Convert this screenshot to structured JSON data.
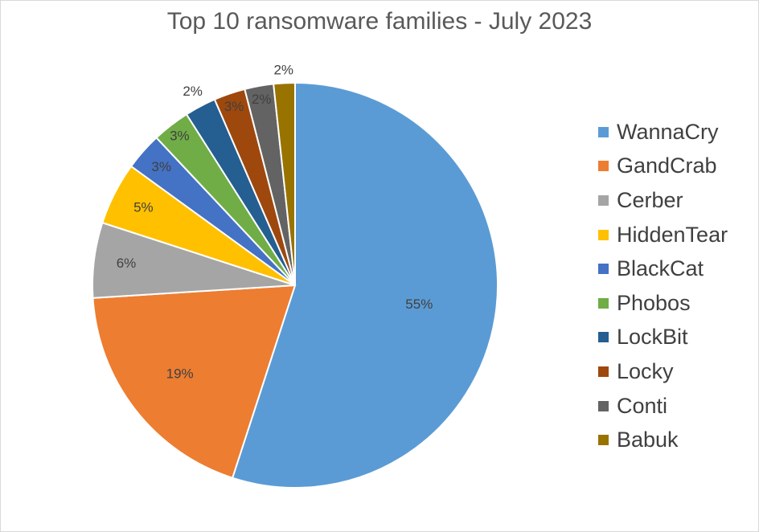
{
  "chart_data": {
    "type": "pie",
    "title": "Top 10 ransomware families - July 2023",
    "slices": [
      {
        "name": "WannaCry",
        "value": 55,
        "label": "55%",
        "color": "#5b9bd5"
      },
      {
        "name": "GandCrab",
        "value": 19,
        "label": "19%",
        "color": "#ed7d31"
      },
      {
        "name": "Cerber",
        "value": 6,
        "label": "6%",
        "color": "#a5a5a5"
      },
      {
        "name": "HiddenTear",
        "value": 5,
        "label": "5%",
        "color": "#ffc000"
      },
      {
        "name": "BlackCat",
        "value": 3,
        "label": "3%",
        "color": "#4472c4"
      },
      {
        "name": "Phobos",
        "value": 3,
        "label": "3%",
        "color": "#70ad47"
      },
      {
        "name": "LockBit",
        "value": 2.5,
        "label": "2%",
        "color": "#255e91"
      },
      {
        "name": "Locky",
        "value": 2.5,
        "label": "3%",
        "color": "#9e480e"
      },
      {
        "name": "Conti",
        "value": 2.3,
        "label": "2%",
        "color": "#636363"
      },
      {
        "name": "Babuk",
        "value": 1.7,
        "label": "2%",
        "color": "#997300"
      }
    ],
    "legend_position": "right"
  }
}
